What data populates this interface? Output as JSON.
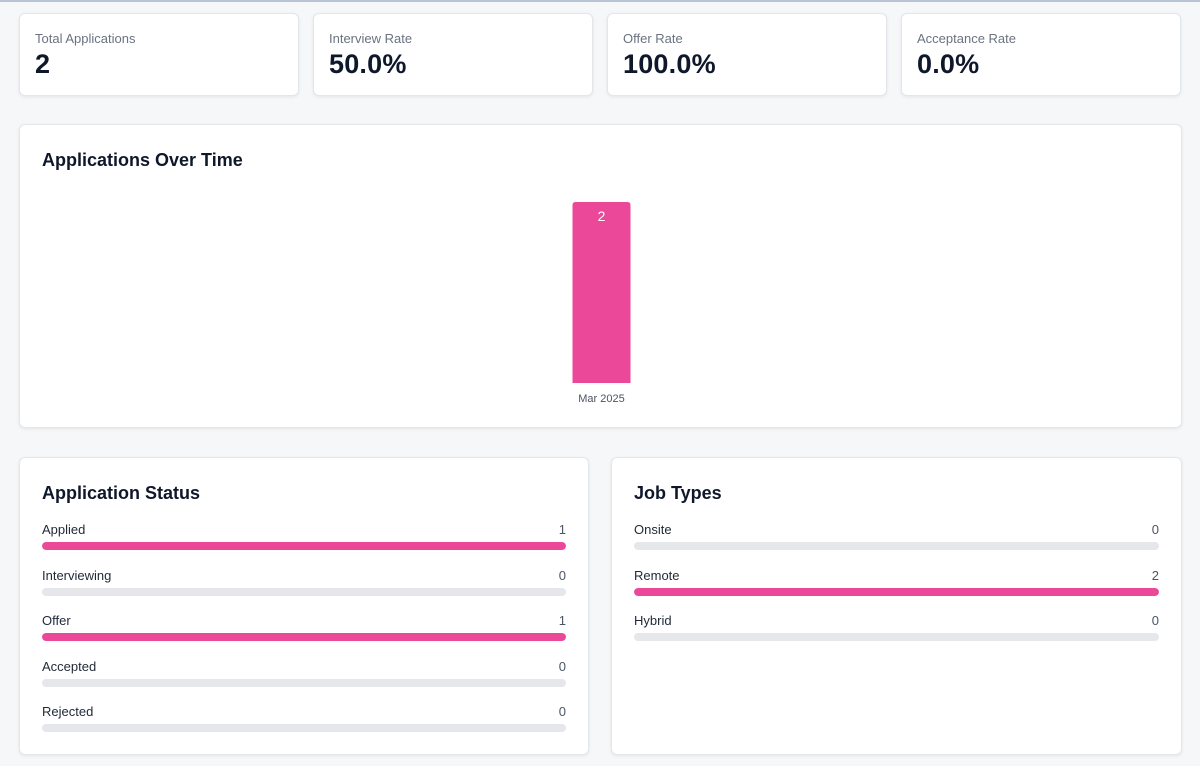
{
  "colors": {
    "accent": "#ec4899",
    "track": "#e5e7eb"
  },
  "stats": [
    {
      "label": "Total Applications",
      "value": "2"
    },
    {
      "label": "Interview Rate",
      "value": "50.0%"
    },
    {
      "label": "Offer Rate",
      "value": "100.0%"
    },
    {
      "label": "Acceptance Rate",
      "value": "0.0%"
    }
  ],
  "applications_over_time": {
    "title": "Applications Over Time"
  },
  "chart_data": {
    "type": "bar",
    "title": "Applications Over Time",
    "categories": [
      "Mar 2025"
    ],
    "values": [
      2
    ],
    "ylim": [
      0,
      2
    ],
    "grid": false,
    "xlabel": "",
    "ylabel": ""
  },
  "status": {
    "title": "Application Status",
    "max": 1,
    "items": [
      {
        "label": "Applied",
        "count": "1",
        "value": 1
      },
      {
        "label": "Interviewing",
        "count": "0",
        "value": 0
      },
      {
        "label": "Offer",
        "count": "1",
        "value": 1
      },
      {
        "label": "Accepted",
        "count": "0",
        "value": 0
      },
      {
        "label": "Rejected",
        "count": "0",
        "value": 0
      }
    ]
  },
  "job_types": {
    "title": "Job Types",
    "max": 2,
    "items": [
      {
        "label": "Onsite",
        "count": "0",
        "value": 0
      },
      {
        "label": "Remote",
        "count": "2",
        "value": 2
      },
      {
        "label": "Hybrid",
        "count": "0",
        "value": 0
      }
    ]
  }
}
